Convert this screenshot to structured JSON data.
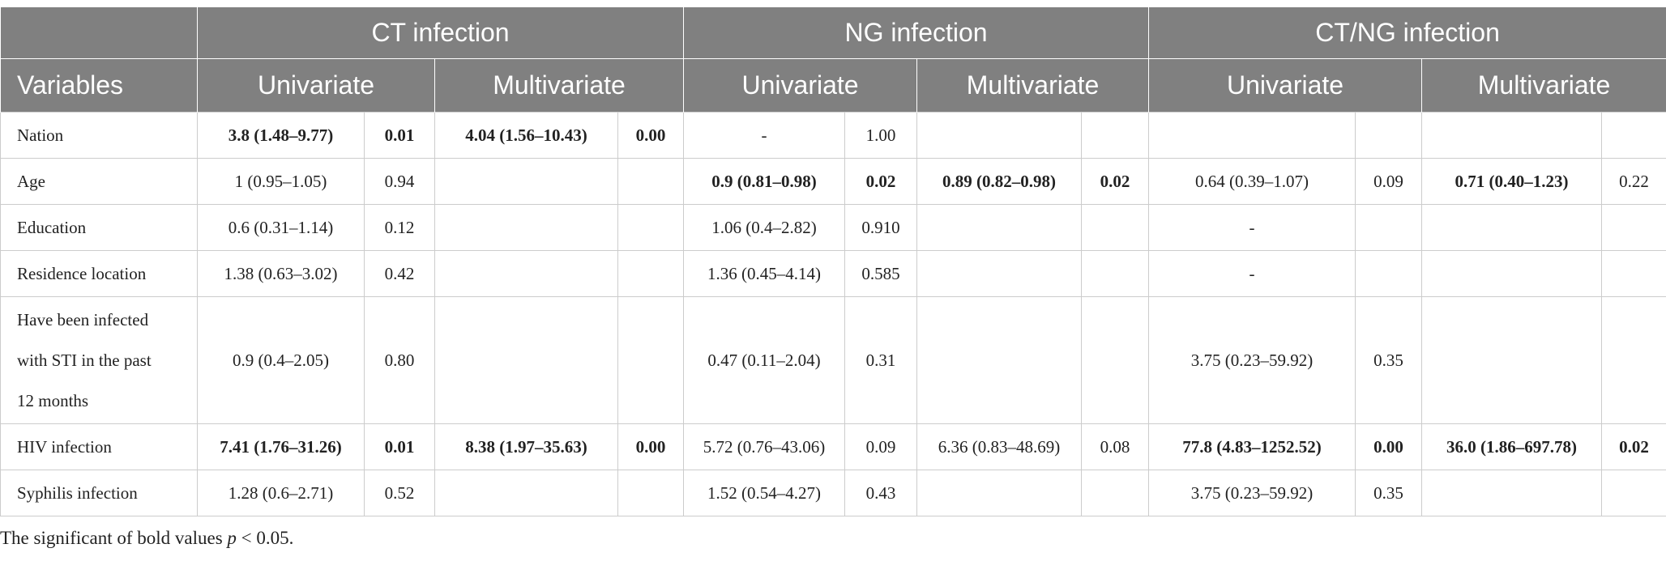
{
  "header": {
    "groups": [
      "CT infection",
      "NG infection",
      "CT/NG infection"
    ],
    "variables_label": "Variables",
    "univariate": "Univariate",
    "multivariate": "Multivariate"
  },
  "rows": [
    {
      "label": "Nation",
      "cells": [
        "3.8 (1.48–9.77)",
        "0.01",
        "4.04 (1.56–10.43)",
        "0.00",
        "-",
        "1.00",
        "",
        "",
        "",
        "",
        "",
        ""
      ]
    },
    {
      "label": "Age",
      "cells": [
        "1 (0.95–1.05)",
        "0.94",
        "",
        "",
        "0.9 (0.81–0.98)",
        "0.02",
        "0.89 (0.82–0.98)",
        "0.02",
        "0.64 (0.39–1.07)",
        "0.09",
        "0.71 (0.40–1.23)",
        "0.22"
      ]
    },
    {
      "label": "Education",
      "cells": [
        "0.6 (0.31–1.14)",
        "0.12",
        "",
        "",
        "1.06 (0.4–2.82)",
        "0.910",
        "",
        "",
        "-",
        "",
        "",
        ""
      ]
    },
    {
      "label": "Residence location",
      "cells": [
        "1.38 (0.63–3.02)",
        "0.42",
        "",
        "",
        "1.36 (0.45–4.14)",
        "0.585",
        "",
        "",
        "-",
        "",
        "",
        ""
      ]
    },
    {
      "label_lines": [
        "Have been infected",
        "with STI in the past",
        "12 months"
      ],
      "cells": [
        "0.9 (0.4–2.05)",
        "0.80",
        "",
        "",
        "0.47 (0.11–2.04)",
        "0.31",
        "",
        "",
        "3.75 (0.23–59.92)",
        "0.35",
        "",
        ""
      ]
    },
    {
      "label": "HIV infection",
      "cells": [
        "7.41 (1.76–31.26)",
        "0.01",
        "8.38 (1.97–35.63)",
        "0.00",
        "5.72 (0.76–43.06)",
        "0.09",
        "6.36 (0.83–48.69)",
        "0.08",
        "77.8 (4.83–1252.52)",
        "0.00",
        "36.0 (1.86–697.78)",
        "0.02"
      ]
    },
    {
      "label": "Syphilis infection",
      "cells": [
        "1.28 (0.6–2.71)",
        "0.52",
        "",
        "",
        "1.52 (0.54–4.27)",
        "0.43",
        "",
        "",
        "3.75 (0.23–59.92)",
        "0.35",
        "",
        ""
      ]
    }
  ],
  "footnote": {
    "prefix": "The significant of bold values ",
    "p": "p",
    "suffix": " < 0.05."
  }
}
